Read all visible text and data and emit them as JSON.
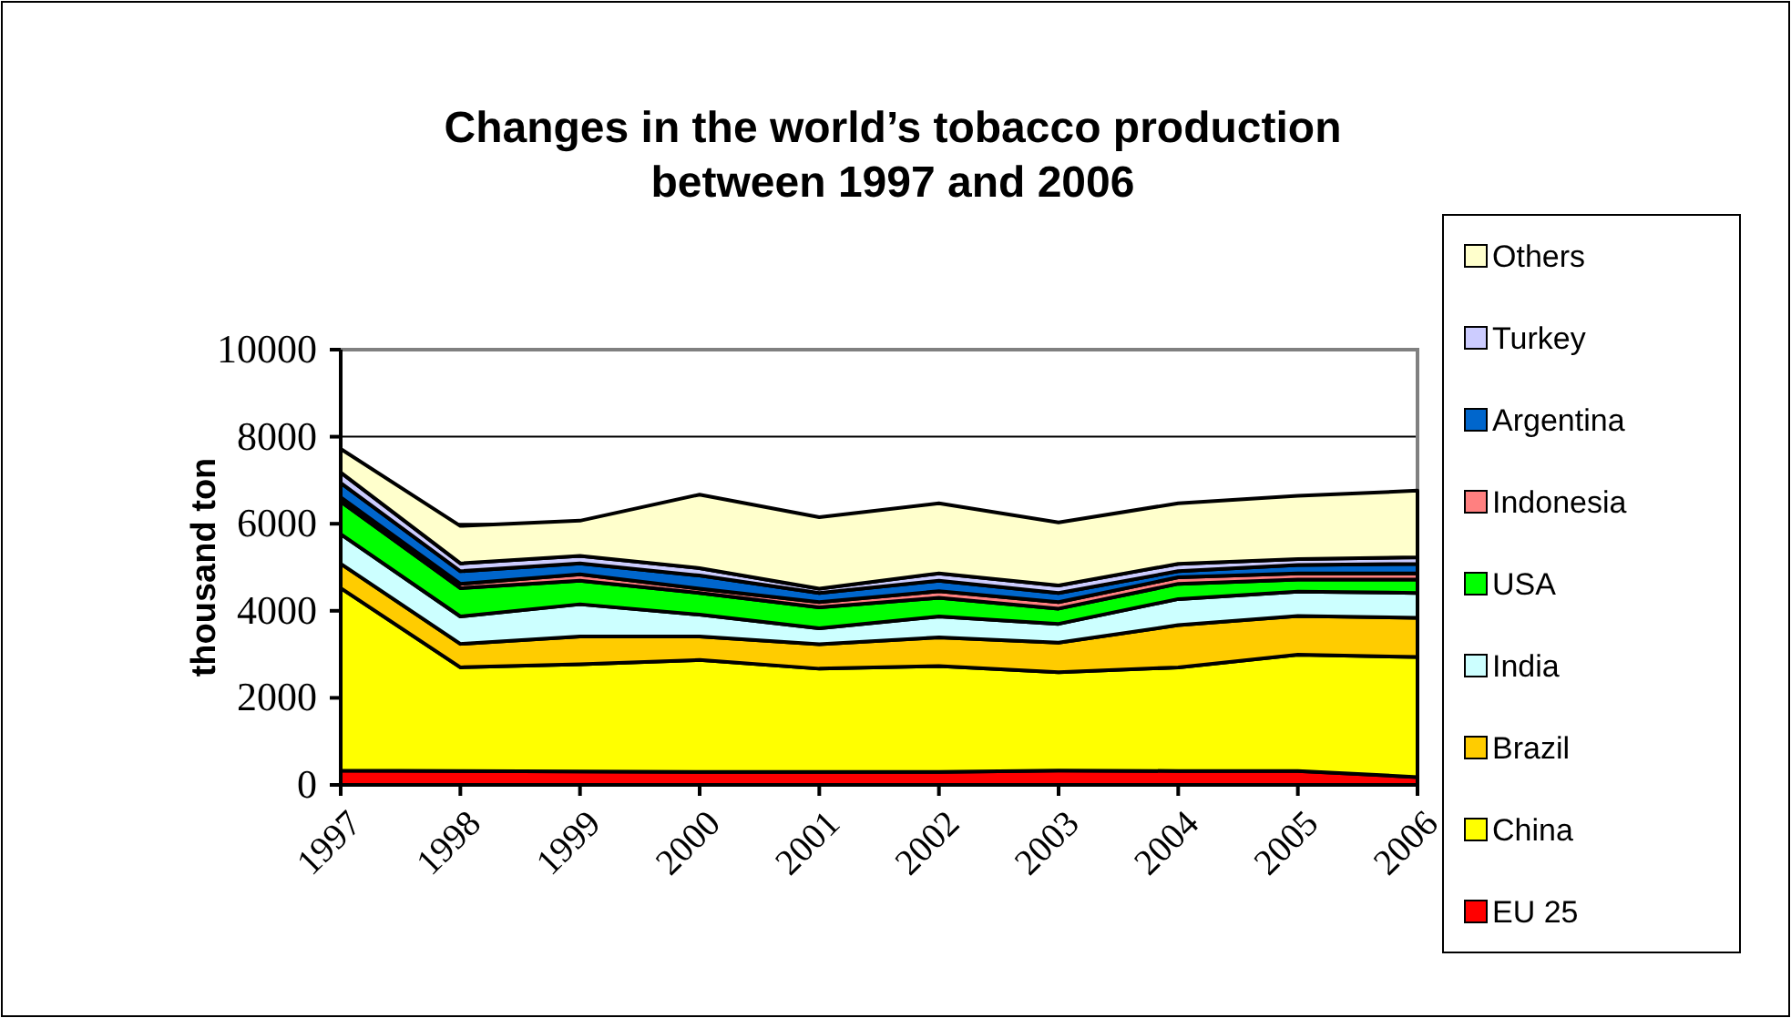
{
  "chart_data": {
    "type": "area",
    "stacked": true,
    "title": "Changes in the world’s tobacco production between 1997 and 2006",
    "ylabel": "thousand ton",
    "categories": [
      "1997",
      "1998",
      "1999",
      "2000",
      "2001",
      "2002",
      "2003",
      "2004",
      "2005",
      "2006"
    ],
    "ylim": [
      0,
      10000
    ],
    "yticks": [
      0,
      2000,
      4000,
      6000,
      8000,
      10000
    ],
    "grid": "y",
    "legend": "right",
    "series": [
      {
        "name": "EU 25",
        "color": "#ff0000",
        "values": [
          330,
          320,
          310,
          300,
          300,
          300,
          330,
          320,
          320,
          180
        ]
      },
      {
        "name": "China",
        "color": "#ffff00",
        "values": [
          4190,
          2380,
          2460,
          2570,
          2370,
          2430,
          2260,
          2380,
          2670,
          2760
        ]
      },
      {
        "name": "Brazil",
        "color": "#ffcc00",
        "values": [
          560,
          540,
          640,
          540,
          560,
          660,
          680,
          970,
          890,
          900
        ]
      },
      {
        "name": "India",
        "color": "#ccffff",
        "values": [
          680,
          630,
          740,
          500,
          370,
          480,
          430,
          600,
          560,
          570
        ]
      },
      {
        "name": "USA",
        "color": "#00ff00",
        "values": [
          750,
          650,
          540,
          500,
          480,
          430,
          350,
          350,
          280,
          310
        ]
      },
      {
        "name": "Indonesia",
        "color": "#ff8080",
        "values": [
          100,
          100,
          150,
          100,
          120,
          150,
          150,
          150,
          140,
          140
        ]
      },
      {
        "name": "Argentina",
        "color": "#0066cc",
        "values": [
          330,
          290,
          250,
          300,
          210,
          240,
          210,
          140,
          190,
          220
        ]
      },
      {
        "name": "Turkey",
        "color": "#ccccff",
        "values": [
          240,
          180,
          170,
          170,
          100,
          170,
          170,
          170,
          140,
          150
        ]
      },
      {
        "name": "Others",
        "color": "#ffffcc",
        "values": [
          540,
          860,
          810,
          1690,
          1640,
          1610,
          1450,
          1390,
          1450,
          1530
        ]
      }
    ]
  }
}
